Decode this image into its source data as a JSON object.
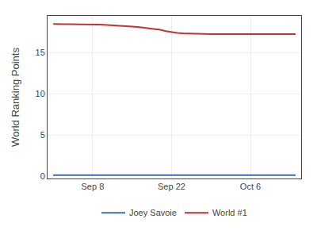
{
  "chart_data": {
    "type": "line",
    "x": [
      0,
      1,
      2,
      3,
      4,
      5,
      6,
      7,
      8,
      9,
      10,
      11,
      12,
      13,
      14,
      15,
      16,
      17,
      18,
      19,
      20,
      21,
      22,
      23,
      24,
      25,
      26,
      27,
      28,
      29,
      30,
      31,
      32,
      33,
      34,
      35,
      36,
      37,
      38,
      39,
      40,
      41,
      42,
      43
    ],
    "series": [
      {
        "name": "Joey Savoie",
        "color": "#4169c8",
        "values": [
          0.1,
          0.1,
          0.1,
          0.1,
          0.1,
          0.1,
          0.1,
          0.1,
          0.1,
          0.1,
          0.1,
          0.1,
          0.1,
          0.1,
          0.1,
          0.1,
          0.1,
          0.1,
          0.1,
          0.1,
          0.1,
          0.1,
          0.1,
          0.1,
          0.1,
          0.1,
          0.1,
          0.1,
          0.1,
          0.1,
          0.1,
          0.1,
          0.1,
          0.1,
          0.1,
          0.1,
          0.1,
          0.1,
          0.1,
          0.1,
          0.1,
          0.1,
          0.1,
          0.1
        ]
      },
      {
        "name": "World #1",
        "color": "#c83030",
        "values": [
          18.5,
          18.5,
          18.5,
          18.5,
          18.48,
          18.47,
          18.46,
          18.45,
          18.43,
          18.41,
          18.38,
          18.35,
          18.3,
          18.25,
          18.2,
          18.15,
          18.08,
          18.0,
          17.9,
          17.8,
          17.65,
          17.5,
          17.42,
          17.38,
          17.35,
          17.3,
          17.28,
          17.27,
          17.27,
          17.27,
          17.27,
          17.27,
          17.27,
          17.27,
          17.27,
          17.27,
          17.27,
          17.27,
          17.27,
          17.27,
          17.27,
          17.27,
          17.27,
          17.27
        ]
      }
    ],
    "xlim": [
      -1,
      44
    ],
    "xticks": [
      {
        "value": 7,
        "label": "Sep 8"
      },
      {
        "value": 21,
        "label": "Sep 22"
      },
      {
        "value": 35,
        "label": "Oct 6"
      }
    ],
    "ylim": [
      -0.3,
      19.5
    ],
    "yticks": [
      0,
      5,
      10,
      15
    ],
    "ylabel": "World Ranking Points",
    "grid": true,
    "legend": "bottom"
  }
}
